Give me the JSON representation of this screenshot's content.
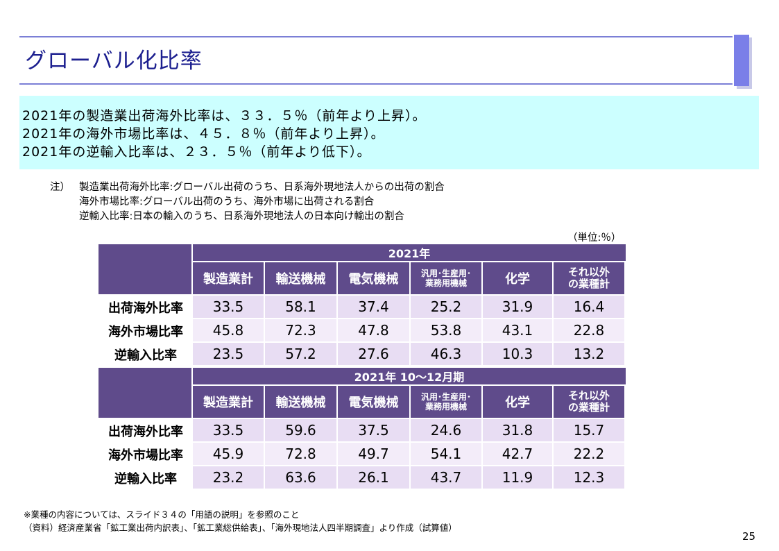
{
  "title": "グローバル化比率",
  "summary": [
    "2021年の製造業出荷海外比率は、３３．５％（前年より上昇）。",
    "2021年の海外市場比率は、４５．８％（前年より上昇）。",
    "2021年の逆輸入比率は、２３．５％（前年より低下）。"
  ],
  "notes": {
    "prefix": "注）",
    "lines": [
      "製造業出荷海外比率:グローバル出荷のうち、日系海外現地法人からの出荷の割合",
      "海外市場比率:グローバル出荷のうち、海外市場に出荷される割合",
      "逆輸入比率:日本の輸入のうち、日系海外現地法人の日本向け輸出の割合"
    ]
  },
  "unit": "（単位:％）",
  "columns": [
    "製造業計",
    "輸送機械",
    "電気機械",
    "汎用･生産用･\n業務用機械",
    "化学",
    "それ以外\nの業種計"
  ],
  "row_labels": [
    "出荷海外比率",
    "海外市場比率",
    "逆輸入比率"
  ],
  "tables": [
    {
      "period": "2021年",
      "rows": [
        [
          "33.5",
          "58.1",
          "37.4",
          "25.2",
          "31.9",
          "16.4"
        ],
        [
          "45.8",
          "72.3",
          "47.8",
          "53.8",
          "43.1",
          "22.8"
        ],
        [
          "23.5",
          "57.2",
          "27.6",
          "46.3",
          "10.3",
          "13.2"
        ]
      ]
    },
    {
      "period": "2021年 10～12月期",
      "rows": [
        [
          "33.5",
          "59.6",
          "37.5",
          "24.6",
          "31.8",
          "15.7"
        ],
        [
          "45.9",
          "72.8",
          "49.7",
          "54.1",
          "42.7",
          "22.2"
        ],
        [
          "23.2",
          "63.6",
          "26.1",
          "43.7",
          "11.9",
          "12.3"
        ]
      ]
    }
  ],
  "footnotes": [
    "※業種の内容については、スライド３４の「用語の説明」を参照のこと",
    "（資料）経済産業省「鉱工業出荷内訳表」、「鉱工業総供給表」、「海外現地法人四半期調査」より作成（試算値）"
  ],
  "page_number": "25",
  "colors": {
    "title": "#1c1f8f",
    "summary_bg": "#ccffff",
    "header_bg": "#5f4b8b",
    "cell_odd": "#e8ddf3",
    "cell_even": "#f3ecf9"
  }
}
